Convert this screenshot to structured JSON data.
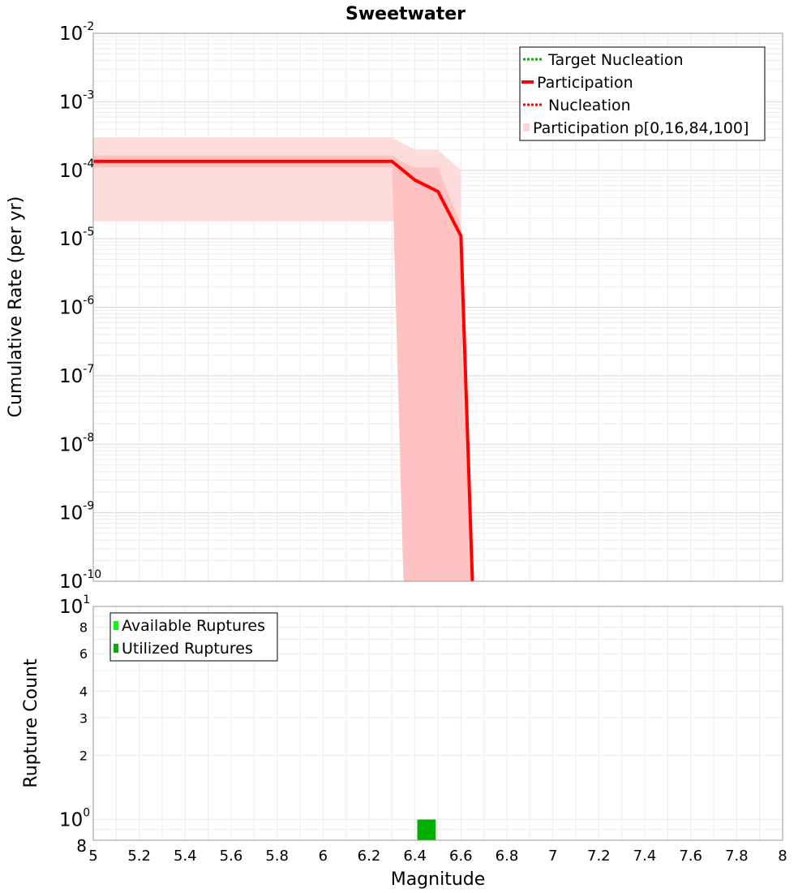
{
  "chart_data": [
    {
      "type": "line",
      "title": "Sweetwater",
      "xlabel": "",
      "ylabel": "Cumulative Rate (per yr)",
      "xlim": [
        5,
        8
      ],
      "ylim": [
        1e-10,
        0.01
      ],
      "yscale": "log",
      "grid": true,
      "legend_position": "top-right",
      "y_ticks": [
        {
          "base": "10",
          "exp": "-2",
          "value": 0.01
        },
        {
          "base": "10",
          "exp": "-3",
          "value": 0.001
        },
        {
          "base": "10",
          "exp": "-4",
          "value": 0.0001
        },
        {
          "base": "10",
          "exp": "-5",
          "value": 1e-05
        },
        {
          "base": "10",
          "exp": "-6",
          "value": 1e-06
        },
        {
          "base": "10",
          "exp": "-7",
          "value": 1e-07
        },
        {
          "base": "10",
          "exp": "-8",
          "value": 1e-08
        },
        {
          "base": "10",
          "exp": "-9",
          "value": 1e-09
        },
        {
          "base": "10",
          "exp": "-10",
          "value": 1e-10
        }
      ],
      "legend": [
        {
          "label": "Target Nucleation",
          "color": "#00b000",
          "style": "dotted"
        },
        {
          "label": "Participation",
          "color": "#ff0000",
          "style": "solid"
        },
        {
          "label": "Nucleation",
          "color": "#ff0000",
          "style": "dotted"
        },
        {
          "label": "Participation p[0,16,84,100]",
          "color": "#ffd6d6",
          "style": "band"
        }
      ],
      "series": [
        {
          "name": "Participation",
          "color": "#ff0000",
          "x": [
            5.0,
            6.3,
            6.4,
            6.5,
            6.6,
            6.65
          ],
          "y": [
            0.000135,
            0.000135,
            7.2e-05,
            4.9e-05,
            1.1e-05,
            1e-10
          ]
        },
        {
          "name": "Nucleation",
          "color": "#ff0000",
          "x": [
            5.0,
            6.3,
            6.4,
            6.5,
            6.6,
            6.65
          ],
          "y": [
            0.000135,
            0.000135,
            7.2e-05,
            4.9e-05,
            1.1e-05,
            1e-10
          ]
        }
      ],
      "bands": [
        {
          "name": "p0-p100",
          "color": "#ffdcdc",
          "x": [
            5.0,
            6.3,
            6.4,
            6.5,
            6.6
          ],
          "upper": [
            0.0003,
            0.0003,
            0.0002,
            0.0002,
            0.0001
          ],
          "lower": [
            1.8e-05,
            1.8e-05,
            1.8e-05,
            1.8e-05,
            1.8e-05
          ],
          "lower_drop_x": 6.3
        },
        {
          "name": "p16-p84",
          "color": "#ffc2c2",
          "x": [
            5.0,
            6.3,
            6.35,
            6.4,
            6.5,
            6.6,
            6.65
          ],
          "upper": [
            0.000165,
            0.000165,
            0.00013,
            0.00011,
            0.00011,
            1.6e-05,
            1e-10
          ],
          "lower": [
            0.00011,
            0.00011,
            1e-10,
            1e-10,
            1e-10,
            1e-10,
            1e-10
          ]
        }
      ]
    },
    {
      "type": "bar",
      "xlabel": "Magnitude",
      "ylabel": "Rupture Count",
      "xlim": [
        5,
        8
      ],
      "ylim": [
        0.8,
        10
      ],
      "yscale": "log",
      "grid": true,
      "legend_position": "top-left",
      "x_ticks": [
        "5",
        "5.2",
        "5.4",
        "5.6",
        "5.8",
        "6",
        "6.2",
        "6.4",
        "6.6",
        "6.8",
        "7",
        "7.2",
        "7.4",
        "7.6",
        "7.8",
        "8"
      ],
      "y_major_ticks": [
        {
          "base": "10",
          "exp": "1",
          "value": 10
        },
        {
          "base": "10",
          "exp": "0",
          "value": 1
        }
      ],
      "y_minor_ticks": [
        {
          "label": "8",
          "value": 8
        },
        {
          "label": "6",
          "value": 6
        },
        {
          "label": "4",
          "value": 4
        },
        {
          "label": "3",
          "value": 3
        },
        {
          "label": "2",
          "value": 2
        },
        {
          "label": "8",
          "value": 0.8
        }
      ],
      "legend": [
        {
          "label": "Available Ruptures",
          "color": "#00ff00"
        },
        {
          "label": "Utilized Ruptures",
          "color": "#00b000"
        }
      ],
      "series": [
        {
          "name": "Available Ruptures",
          "color": "#00ff00",
          "bins": [
            {
              "x0": 6.4,
              "x1": 6.5,
              "value": 1
            }
          ]
        },
        {
          "name": "Utilized Ruptures",
          "color": "#00b000",
          "bins": [
            {
              "x0": 6.4,
              "x1": 6.5,
              "value": 1
            }
          ]
        }
      ]
    }
  ]
}
